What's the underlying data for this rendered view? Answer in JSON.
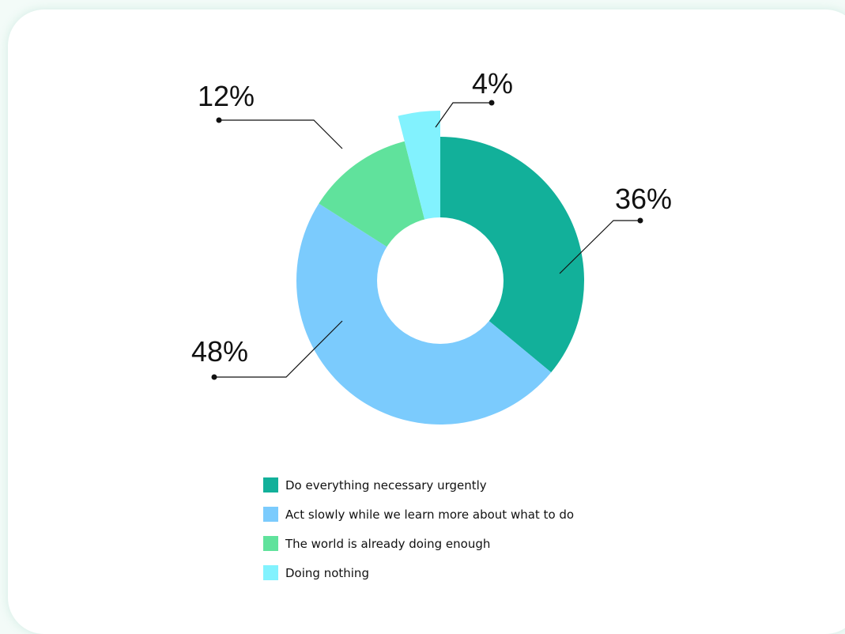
{
  "colors": {
    "card_background": "#ffffff",
    "page_background": "#f3fbf8",
    "leader_line": "#111111"
  },
  "chart_data": {
    "type": "pie",
    "variant": "donut",
    "start_angle_deg": 0,
    "direction": "clockwise",
    "slices": [
      {
        "label": "Do everything necessary urgently",
        "value": 36,
        "display": "36%",
        "color": "#12b09a",
        "exploded": false
      },
      {
        "label": "Act slowly while we learn more about what to do",
        "value": 48,
        "display": "48%",
        "color": "#7bcbfd",
        "exploded": false
      },
      {
        "label": "The world is already doing enough",
        "value": 12,
        "display": "12%",
        "color": "#60e29c",
        "exploded": false
      },
      {
        "label": "Doing nothing",
        "value": 4,
        "display": "4%",
        "color": "#82f2fe",
        "exploded": true
      }
    ],
    "legend_position": "bottom"
  }
}
